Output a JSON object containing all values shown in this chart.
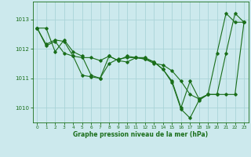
{
  "background_color": "#cce9ed",
  "grid_color": "#aad4d8",
  "line_color": "#1a6e1a",
  "xlabel": "Graphe pression niveau de la mer (hPa)",
  "xlim": [
    -0.5,
    23.5
  ],
  "ylim": [
    1009.5,
    1013.6
  ],
  "yticks": [
    1010,
    1011,
    1012,
    1013
  ],
  "xticks": [
    0,
    1,
    2,
    3,
    4,
    5,
    6,
    7,
    8,
    9,
    10,
    11,
    12,
    13,
    14,
    15,
    16,
    17,
    18,
    19,
    20,
    21,
    22,
    23
  ],
  "series": [
    [
      1012.7,
      1012.7,
      1011.9,
      1012.3,
      1011.9,
      1011.75,
      1011.1,
      1011.0,
      1011.75,
      1011.6,
      1011.75,
      1011.7,
      1011.7,
      1011.55,
      1011.3,
      1010.9,
      1010.0,
      1010.9,
      1010.3,
      1010.45,
      1011.85,
      1013.2,
      1012.9,
      1012.9
    ],
    [
      1012.7,
      1012.15,
      1012.3,
      1012.25,
      1011.75,
      1011.7,
      1011.7,
      1011.6,
      1011.75,
      1011.6,
      1011.55,
      1011.7,
      1011.65,
      1011.5,
      1011.45,
      1011.25,
      1010.9,
      1010.45,
      1010.3,
      1010.45,
      1010.45,
      1010.45,
      1010.45,
      1012.9
    ],
    [
      1012.7,
      1012.1,
      1012.25,
      1011.85,
      1011.75,
      1011.1,
      1011.05,
      1011.0,
      1011.5,
      1011.65,
      1011.7,
      1011.7,
      1011.65,
      1011.55,
      1011.3,
      1010.85,
      1009.95,
      1009.65,
      1010.25,
      1010.45,
      1010.45,
      1011.85,
      1013.2,
      1012.9
    ]
  ]
}
